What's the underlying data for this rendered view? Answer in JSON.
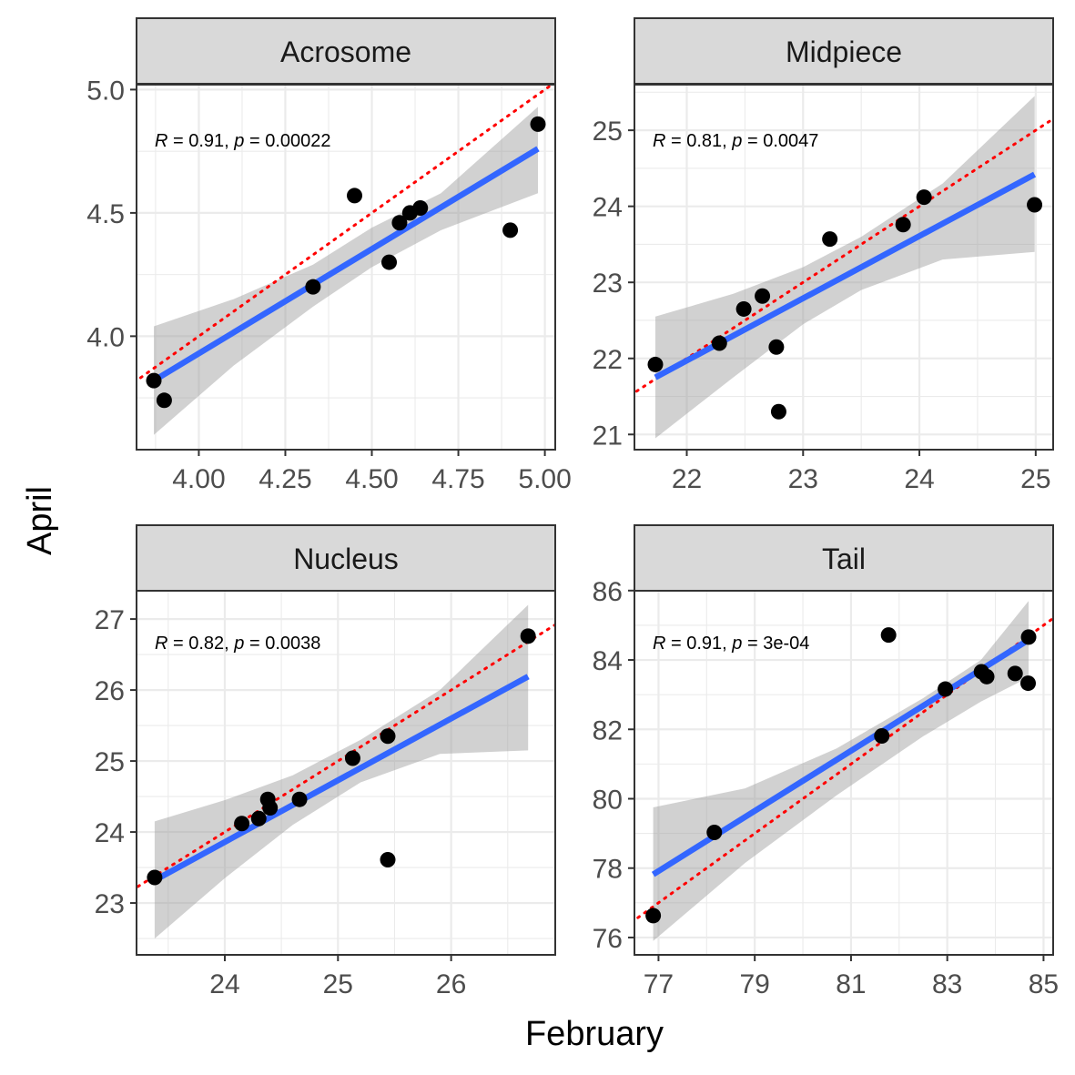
{
  "figure": {
    "xlabel": "February",
    "ylabel": "April"
  },
  "chart_data": [
    {
      "type": "scatter",
      "facet": "Acrosome",
      "annotation": {
        "r_label": "R",
        "r_text": " = 0.91, ",
        "p_label": "p",
        "p_text": " = 0.00022"
      },
      "xlim": [
        3.82,
        5.03
      ],
      "ylim": [
        3.54,
        5.02
      ],
      "xticks": [
        4.0,
        4.25,
        4.5,
        4.75,
        5.0
      ],
      "xtick_labels": [
        "4.00",
        "4.25",
        "4.50",
        "4.75",
        "5.00"
      ],
      "yticks": [
        4.0,
        4.5,
        5.0
      ],
      "ytick_labels": [
        "4.0",
        "4.5",
        "5.0"
      ],
      "points": [
        {
          "x": 3.87,
          "y": 3.82
        },
        {
          "x": 3.9,
          "y": 3.74
        },
        {
          "x": 4.33,
          "y": 4.2
        },
        {
          "x": 4.45,
          "y": 4.57
        },
        {
          "x": 4.55,
          "y": 4.3
        },
        {
          "x": 4.58,
          "y": 4.46
        },
        {
          "x": 4.61,
          "y": 4.5
        },
        {
          "x": 4.64,
          "y": 4.52
        },
        {
          "x": 4.9,
          "y": 4.43
        },
        {
          "x": 4.98,
          "y": 4.86
        }
      ],
      "fit": {
        "x": [
          3.87,
          4.98
        ],
        "y": [
          3.82,
          4.76
        ]
      },
      "ci_band": {
        "x": [
          3.87,
          4.1,
          4.33,
          4.5,
          4.7,
          4.98
        ],
        "lower": [
          3.6,
          3.88,
          4.12,
          4.28,
          4.43,
          4.58
        ],
        "upper": [
          4.04,
          4.15,
          4.29,
          4.44,
          4.58,
          4.93
        ]
      },
      "identity_line": true
    },
    {
      "type": "scatter",
      "facet": "Midpiece",
      "annotation": {
        "r_label": "R",
        "r_text": " = 0.81, ",
        "p_label": "p",
        "p_text": " = 0.0047"
      },
      "xlim": [
        21.55,
        25.15
      ],
      "ylim": [
        20.8,
        25.6
      ],
      "xticks": [
        22,
        23,
        24,
        25
      ],
      "xtick_labels": [
        "22",
        "23",
        "24",
        "25"
      ],
      "yticks": [
        21,
        22,
        23,
        24,
        25
      ],
      "ytick_labels": [
        "21",
        "22",
        "23",
        "24",
        "25"
      ],
      "points": [
        {
          "x": 21.73,
          "y": 21.92
        },
        {
          "x": 22.28,
          "y": 22.2
        },
        {
          "x": 22.49,
          "y": 22.65
        },
        {
          "x": 22.65,
          "y": 22.82
        },
        {
          "x": 22.77,
          "y": 22.15
        },
        {
          "x": 22.79,
          "y": 21.3
        },
        {
          "x": 23.23,
          "y": 23.57
        },
        {
          "x": 23.86,
          "y": 23.76
        },
        {
          "x": 24.04,
          "y": 24.12
        },
        {
          "x": 24.99,
          "y": 24.02
        }
      ],
      "fit": {
        "x": [
          21.73,
          24.99
        ],
        "y": [
          21.75,
          24.42
        ]
      },
      "ci_band": {
        "x": [
          21.73,
          22.4,
          23.0,
          23.5,
          24.2,
          24.99
        ],
        "lower": [
          20.95,
          21.75,
          22.45,
          22.9,
          23.3,
          23.4
        ],
        "upper": [
          22.55,
          22.85,
          23.2,
          23.6,
          24.3,
          25.45
        ]
      },
      "identity_line": true
    },
    {
      "type": "scatter",
      "facet": "Nucleus",
      "annotation": {
        "r_label": "R",
        "r_text": " = 0.82, ",
        "p_label": "p",
        "p_text": " = 0.0038"
      },
      "xlim": [
        23.22,
        26.92
      ],
      "ylim": [
        22.27,
        27.45
      ],
      "xticks": [
        24,
        25,
        26
      ],
      "xtick_labels": [
        "24",
        "25",
        "26"
      ],
      "yticks": [
        23,
        24,
        25,
        26,
        27
      ],
      "ytick_labels": [
        "23",
        "24",
        "25",
        "26",
        "27"
      ],
      "points": [
        {
          "x": 23.38,
          "y": 23.36
        },
        {
          "x": 24.15,
          "y": 24.12
        },
        {
          "x": 24.3,
          "y": 24.19
        },
        {
          "x": 24.38,
          "y": 24.46
        },
        {
          "x": 24.4,
          "y": 24.34
        },
        {
          "x": 24.66,
          "y": 24.46
        },
        {
          "x": 25.13,
          "y": 25.04
        },
        {
          "x": 25.44,
          "y": 25.35
        },
        {
          "x": 25.44,
          "y": 23.61
        },
        {
          "x": 26.68,
          "y": 26.76
        }
      ],
      "fit": {
        "x": [
          23.38,
          26.68
        ],
        "y": [
          23.32,
          26.19
        ]
      },
      "ci_band": {
        "x": [
          23.38,
          24.0,
          24.6,
          25.2,
          25.9,
          26.68
        ],
        "lower": [
          22.5,
          23.35,
          24.1,
          24.7,
          25.1,
          25.15
        ],
        "upper": [
          24.15,
          24.45,
          24.8,
          25.3,
          26.0,
          27.2
        ]
      },
      "identity_line": true
    },
    {
      "type": "scatter",
      "facet": "Tail",
      "annotation": {
        "r_label": "R",
        "r_text": " = 0.91, ",
        "p_label": "p",
        "p_text": " = 3e-04"
      },
      "xlim": [
        76.5,
        85.2
      ],
      "ylim": [
        75.5,
        86.1
      ],
      "xticks": [
        77,
        79,
        81,
        83,
        85
      ],
      "xtick_labels": [
        "77",
        "79",
        "81",
        "83",
        "85"
      ],
      "yticks": [
        76,
        78,
        80,
        82,
        84,
        86
      ],
      "ytick_labels": [
        "76",
        "78",
        "80",
        "82",
        "84",
        "86"
      ],
      "points": [
        {
          "x": 76.89,
          "y": 76.63
        },
        {
          "x": 78.16,
          "y": 79.03
        },
        {
          "x": 81.64,
          "y": 81.81
        },
        {
          "x": 81.78,
          "y": 84.72
        },
        {
          "x": 82.96,
          "y": 83.16
        },
        {
          "x": 83.71,
          "y": 83.66
        },
        {
          "x": 83.82,
          "y": 83.52
        },
        {
          "x": 84.41,
          "y": 83.61
        },
        {
          "x": 84.68,
          "y": 83.33
        },
        {
          "x": 84.69,
          "y": 84.66
        }
      ],
      "fit": {
        "x": [
          76.89,
          84.69
        ],
        "y": [
          77.82,
          84.58
        ]
      },
      "ci_band": {
        "x": [
          76.89,
          78.8,
          80.7,
          82.5,
          83.7,
          84.69
        ],
        "lower": [
          75.9,
          78.15,
          80.1,
          81.8,
          82.8,
          83.5
        ],
        "upper": [
          79.75,
          80.3,
          81.45,
          82.9,
          84.0,
          85.7
        ]
      },
      "identity_line": true
    }
  ]
}
